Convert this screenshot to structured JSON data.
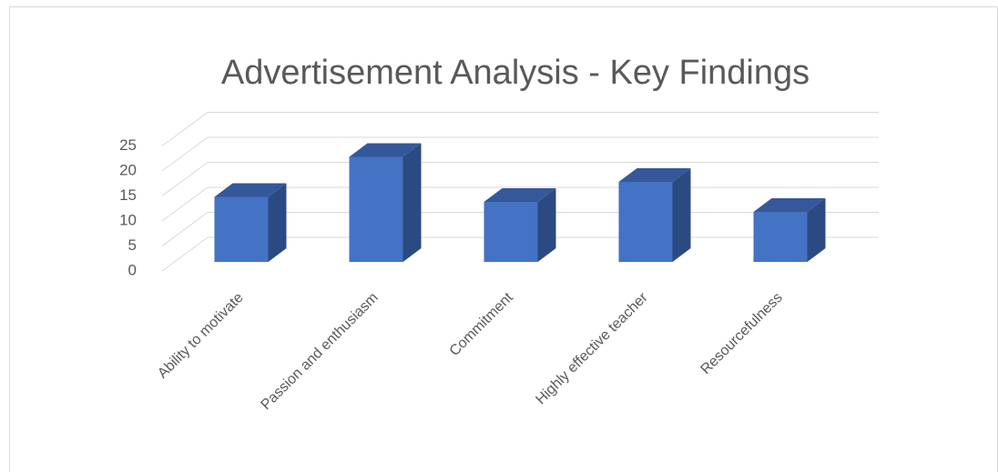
{
  "chart_data": {
    "type": "bar3d",
    "title": "Advertisement Analysis - Key Findings",
    "categories": [
      "Ability to motivate",
      "Passion and enthusiasm",
      "Commitment",
      "Highly effective teacher",
      "Resourcefulness"
    ],
    "values": [
      13,
      21,
      12,
      16,
      10
    ],
    "color": "#4472c4",
    "ylim": [
      0,
      25
    ],
    "yticks": [
      0,
      5,
      10,
      15,
      20,
      25
    ],
    "grid": true
  }
}
